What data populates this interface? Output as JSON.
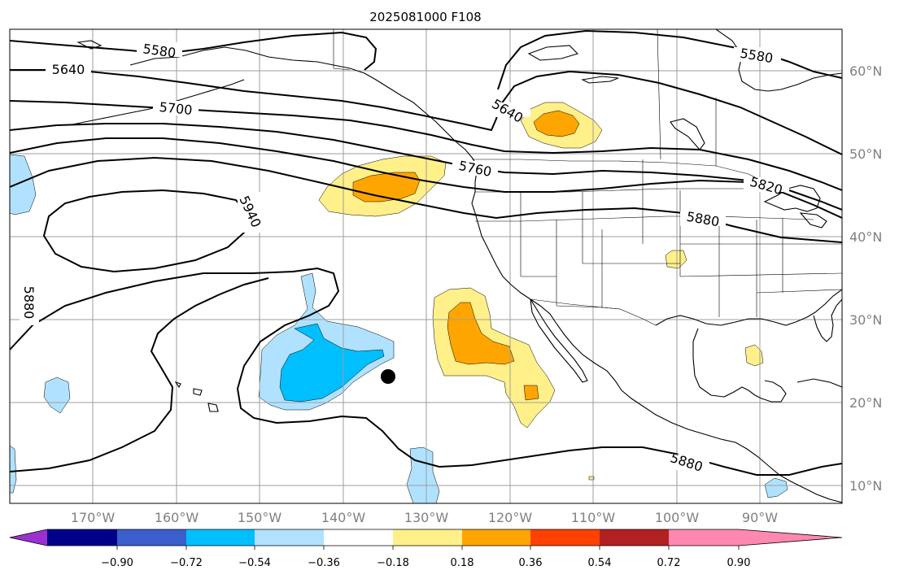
{
  "title": "2025081000 F108",
  "longitude_labels": [
    "170°W",
    "160°W",
    "150°W",
    "140°W",
    "130°W",
    "120°W",
    "110°W",
    "100°W",
    "90°W"
  ],
  "latitude_labels": [
    "60°N",
    "50°N",
    "40°N",
    "30°N",
    "20°N",
    "10°N"
  ],
  "contour_labels": [
    "5580",
    "5640",
    "5700",
    "5760",
    "5820",
    "5880",
    "5940"
  ],
  "colorbar": {
    "tick_labels": [
      "−0.90",
      "−0.72",
      "−0.54",
      "−0.36",
      "−0.18",
      "0.18",
      "0.36",
      "0.54",
      "0.72",
      "0.90"
    ],
    "colors": [
      "#9b30d0",
      "#00008b",
      "#3a5fcd",
      "#00bfff",
      "#b0e2ff",
      "#ffffff",
      "#fff08a",
      "#ffa500",
      "#ff4000",
      "#b22222",
      "#ff88b0"
    ]
  },
  "storm_marker": {
    "lon": -135,
    "lat": 23.2
  }
}
